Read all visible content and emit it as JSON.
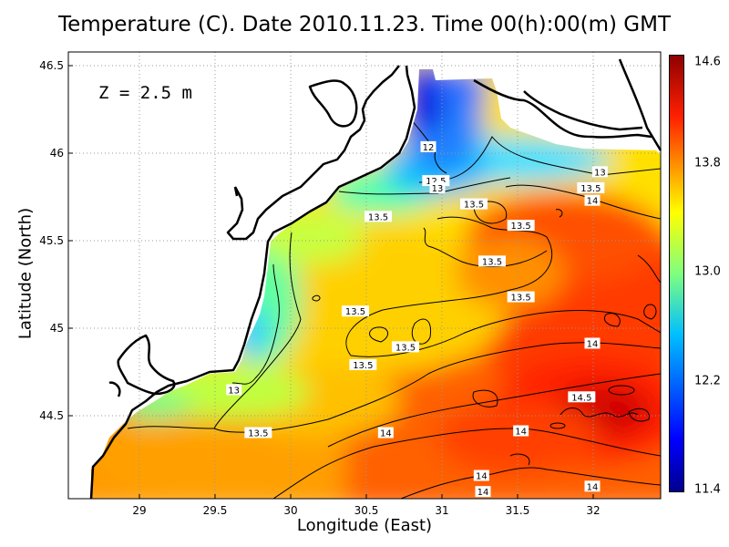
{
  "title": "Temperature (C). Date 2010.11.23. Time 00(h):00(m) GMT",
  "depth_label": "Z = 2.5 m",
  "xlabel": "Longitude (East)",
  "ylabel": "Latitude (North)",
  "chart_data": {
    "type": "heatmap",
    "title": "Temperature (C). Date 2010.11.23. Time 00(h):00(m) GMT",
    "xlabel": "Longitude (East)",
    "ylabel": "Latitude (North)",
    "xlim": [
      28.55,
      32.45
    ],
    "ylim": [
      44.05,
      46.55
    ],
    "xticks": [
      "29",
      "29.5",
      "30",
      "30.5",
      "31",
      "31.5",
      "32"
    ],
    "yticks": [
      "44.5",
      "45",
      "45.5",
      "46",
      "46.5"
    ],
    "grid": true,
    "colorbar": {
      "range": [
        11.4,
        14.6
      ],
      "ticks": [
        "11.4",
        "12.2",
        "13.0",
        "13.8",
        "14.6"
      ],
      "colormap": "jet"
    },
    "contour_labels": [
      {
        "text": "12",
        "lon": 30.92,
        "lat": 46.02
      },
      {
        "text": "12.5",
        "lon": 30.97,
        "lat": 45.83
      },
      {
        "text": "13",
        "lon": 30.98,
        "lat": 45.79
      },
      {
        "text": "13",
        "lon": 32.05,
        "lat": 45.88
      },
      {
        "text": "13.5",
        "lon": 31.22,
        "lat": 45.7
      },
      {
        "text": "13.5",
        "lon": 30.59,
        "lat": 45.63
      },
      {
        "text": "13.5",
        "lon": 31.53,
        "lat": 45.58
      },
      {
        "text": "13.5",
        "lon": 31.99,
        "lat": 45.79
      },
      {
        "text": "14",
        "lon": 32.0,
        "lat": 45.72
      },
      {
        "text": "13.5",
        "lon": 31.34,
        "lat": 45.38
      },
      {
        "text": "13.5",
        "lon": 31.53,
        "lat": 45.18
      },
      {
        "text": "13.5",
        "lon": 30.44,
        "lat": 45.1
      },
      {
        "text": "13.5",
        "lon": 30.77,
        "lat": 44.9
      },
      {
        "text": "13.5",
        "lon": 30.49,
        "lat": 44.8
      },
      {
        "text": "14",
        "lon": 32.0,
        "lat": 44.92
      },
      {
        "text": "13",
        "lon": 29.64,
        "lat": 44.66
      },
      {
        "text": "13.5",
        "lon": 29.8,
        "lat": 44.42
      },
      {
        "text": "14",
        "lon": 30.64,
        "lat": 44.42
      },
      {
        "text": "14.5",
        "lon": 31.93,
        "lat": 44.62
      },
      {
        "text": "14",
        "lon": 31.53,
        "lat": 44.43
      },
      {
        "text": "14",
        "lon": 31.27,
        "lat": 44.18
      },
      {
        "text": "14",
        "lon": 31.28,
        "lat": 44.09
      },
      {
        "text": "14",
        "lon": 32.0,
        "lat": 44.12
      }
    ]
  },
  "colors": {
    "land": "#ffffff",
    "coastline": "#000000",
    "gridline": "#999999"
  }
}
